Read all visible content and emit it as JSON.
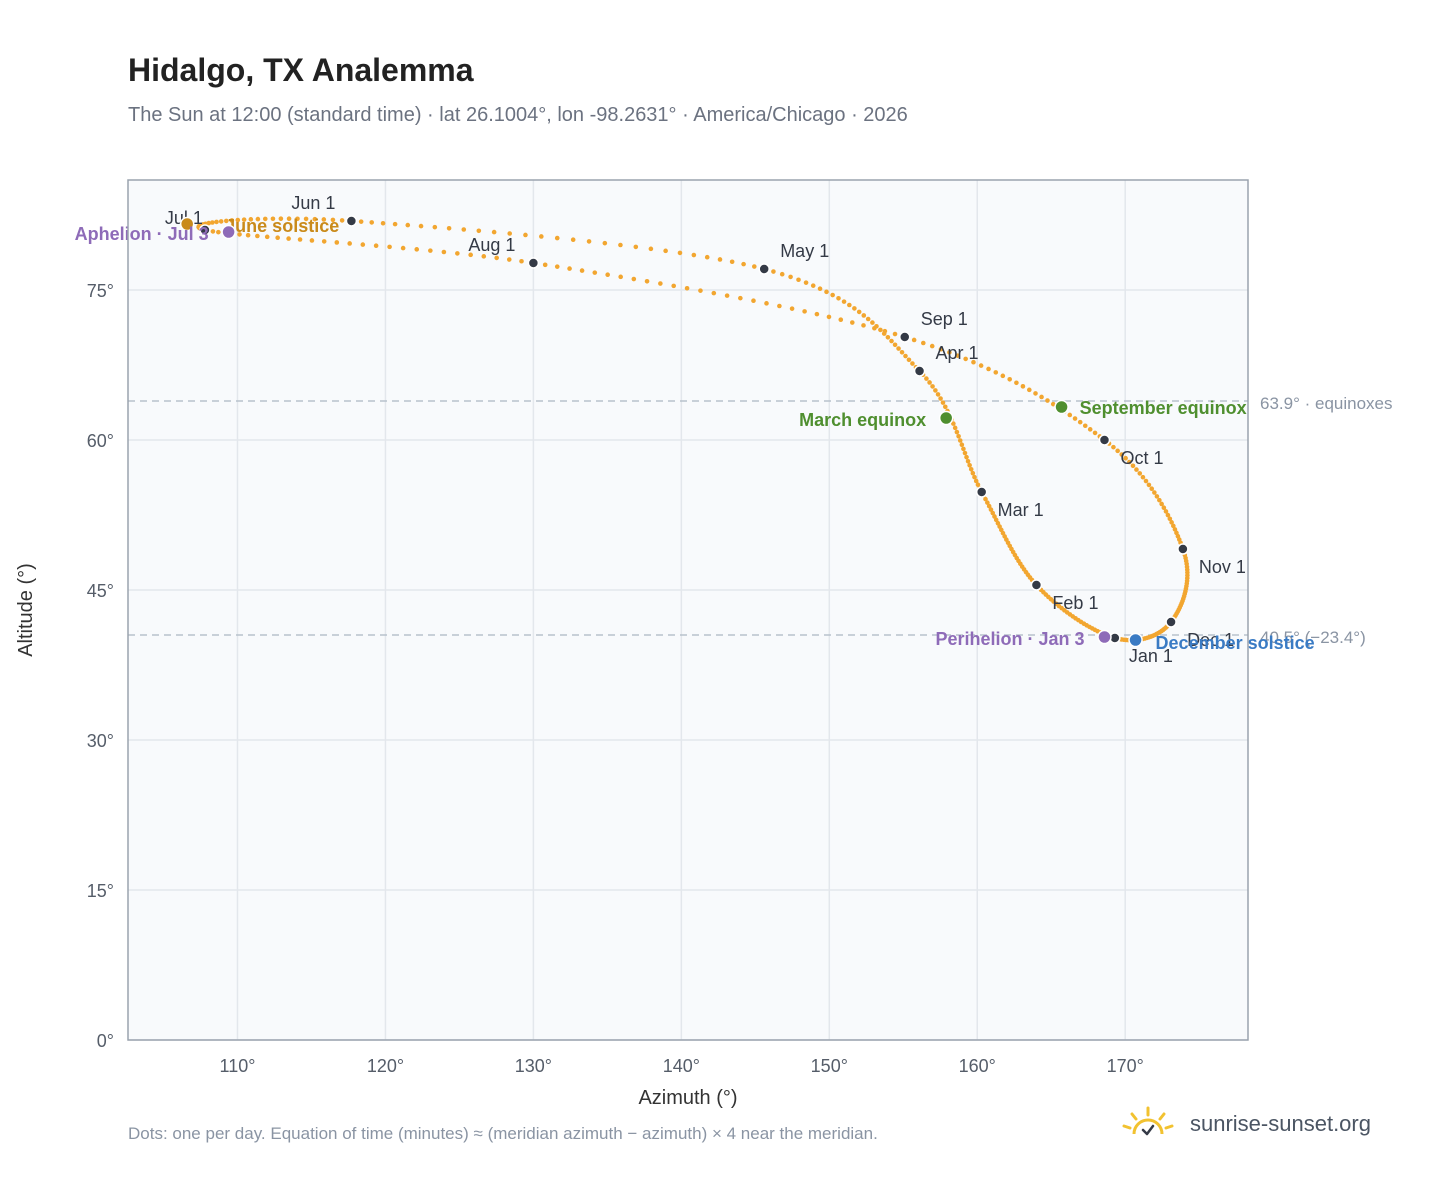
{
  "title": "Hidalgo, TX Analemma",
  "subtitle": "The Sun at 12:00 (standard time) · lat 26.1004°, lon -98.2631° · America/Chicago · 2026",
  "footnote": "Dots: one per day. Equation of time (minutes) ≈ (meridian azimuth − azimuth) × 4 near the meridian.",
  "brand": {
    "name": "sunrise-sunset.org",
    "icon": "sun-logo-icon"
  },
  "colors": {
    "path": "#f2a630",
    "month_marker": "#343a46",
    "equinox": "#4f8f2f",
    "december_solstice": "#3a7bc4",
    "june_solstice": "#c98a1a",
    "apsis": "#8e6bb8",
    "plot_bg": "#f8fafc",
    "grid": "#e3e7ec",
    "reference_line": "#b8c2cc"
  },
  "chart_data": {
    "type": "scatter",
    "xlabel": "Azimuth (°)",
    "ylabel": "Altitude (°)",
    "xlim": [
      102.6,
      178.3
    ],
    "ylim": [
      0,
      86
    ],
    "xticks": [
      "110°",
      "120°",
      "130°",
      "140°",
      "150°",
      "160°",
      "170°"
    ],
    "xtick_values": [
      110,
      120,
      130,
      140,
      150,
      160,
      170
    ],
    "yticks": [
      "0°",
      "15°",
      "30°",
      "45°",
      "60°",
      "75°"
    ],
    "ytick_values": [
      0,
      15,
      30,
      45,
      60,
      75
    ],
    "grid": true,
    "series_description": "one dot per day",
    "month_markers": [
      {
        "label": "Jan 1",
        "az": 169.3,
        "alt": 40.2
      },
      {
        "label": "Feb 1",
        "az": 164.0,
        "alt": 45.5
      },
      {
        "label": "Mar 1",
        "az": 160.3,
        "alt": 54.8
      },
      {
        "label": "Apr 1",
        "az": 156.1,
        "alt": 66.9
      },
      {
        "label": "May 1",
        "az": 145.6,
        "alt": 77.1
      },
      {
        "label": "Jun 1",
        "az": 117.7,
        "alt": 81.9
      },
      {
        "label": "Jul 1",
        "az": 107.8,
        "alt": 81.0
      },
      {
        "label": "Aug 1",
        "az": 130.0,
        "alt": 77.7
      },
      {
        "label": "Sep 1",
        "az": 155.1,
        "alt": 70.3
      },
      {
        "label": "Oct 1",
        "az": 168.6,
        "alt": 60.0
      },
      {
        "label": "Nov 1",
        "az": 173.9,
        "alt": 49.1
      },
      {
        "label": "Dec 1",
        "az": 173.1,
        "alt": 41.8
      }
    ],
    "events": [
      {
        "label": "March equinox",
        "az": 157.9,
        "alt": 62.2,
        "color_key": "equinox"
      },
      {
        "label": "September equinox",
        "az": 165.7,
        "alt": 63.3,
        "color_key": "equinox"
      },
      {
        "label": "June solstice",
        "az": 106.6,
        "alt": 81.6,
        "color_key": "june_solstice"
      },
      {
        "label": "December solstice",
        "az": 170.7,
        "alt": 40.0,
        "color_key": "december_solstice"
      },
      {
        "label": "Aphelion · Jul 3",
        "az": 109.4,
        "alt": 80.8,
        "color_key": "apsis"
      },
      {
        "label": "Perihelion · Jan 3",
        "az": 168.6,
        "alt": 40.3,
        "color_key": "apsis"
      }
    ],
    "reference_lines": [
      {
        "alt": 63.9,
        "label": "63.9° · equinoxes"
      },
      {
        "alt": 40.5,
        "label": "40.5° (−23.4°)"
      }
    ]
  }
}
